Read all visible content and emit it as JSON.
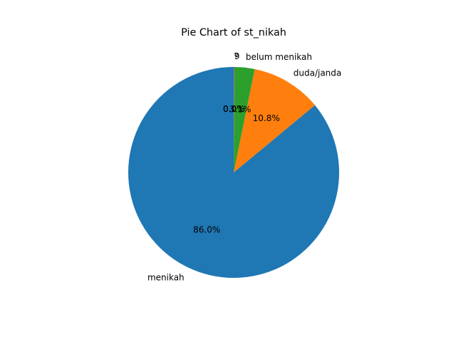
{
  "chart_data": {
    "type": "pie",
    "title": "Pie Chart of st_nikah",
    "start_angle_deg": 90,
    "direction": "counterclockwise",
    "slices": [
      {
        "label": "menikah",
        "value": 86.0,
        "pct_label": "86.0%",
        "color": "#1f77b4"
      },
      {
        "label": "duda/janda",
        "value": 10.8,
        "pct_label": "10.8%",
        "color": "#ff7f0e"
      },
      {
        "label": "belum menikah",
        "value": 3.1,
        "pct_label": "3.1%",
        "color": "#2ca02c"
      },
      {
        "label": "9",
        "value": 0.05,
        "pct_label": "0.0%",
        "color": "#d62728"
      },
      {
        "label": "?",
        "value": 0.05,
        "pct_label": "0.0%",
        "color": "#9467bd"
      }
    ]
  }
}
